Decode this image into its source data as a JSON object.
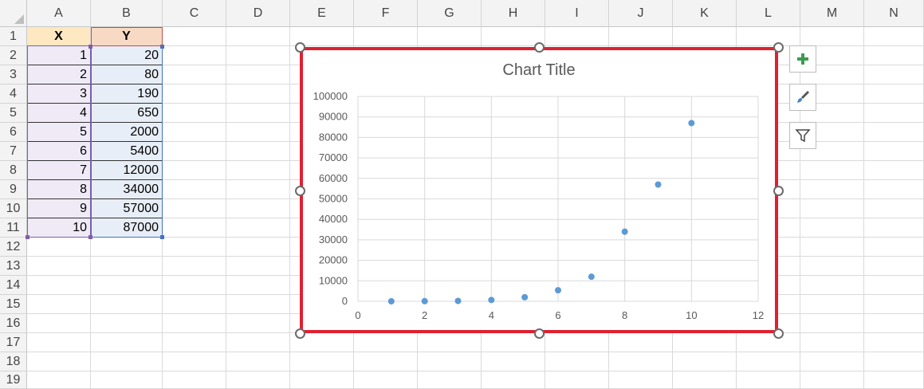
{
  "columns": [
    "A",
    "B",
    "C",
    "D",
    "E",
    "F",
    "G",
    "H",
    "I",
    "J",
    "K",
    "L",
    "M",
    "N"
  ],
  "rows": [
    "1",
    "2",
    "3",
    "4",
    "5",
    "6",
    "7",
    "8",
    "9",
    "10",
    "11",
    "12",
    "13",
    "14",
    "15",
    "16",
    "17",
    "18",
    "19"
  ],
  "table": {
    "header_x": "X",
    "header_y": "Y",
    "x_values": [
      "1",
      "2",
      "3",
      "4",
      "5",
      "6",
      "7",
      "8",
      "9",
      "10"
    ],
    "y_values": [
      "20",
      "80",
      "190",
      "650",
      "2000",
      "5400",
      "12000",
      "34000",
      "57000",
      "87000"
    ]
  },
  "chart_data": {
    "type": "scatter",
    "title": "Chart Title",
    "xlabel": "",
    "ylabel": "",
    "x": [
      1,
      2,
      3,
      4,
      5,
      6,
      7,
      8,
      9,
      10
    ],
    "y": [
      20,
      80,
      190,
      650,
      2000,
      5400,
      12000,
      34000,
      57000,
      87000
    ],
    "xlim": [
      0,
      12
    ],
    "ylim": [
      0,
      100000
    ],
    "x_ticks": [
      "0",
      "2",
      "4",
      "6",
      "8",
      "10",
      "12"
    ],
    "y_ticks": [
      "0",
      "10000",
      "20000",
      "30000",
      "40000",
      "50000",
      "60000",
      "70000",
      "80000",
      "90000",
      "100000"
    ],
    "grid": true,
    "marker_color": "#5b9bd5"
  },
  "chart_buttons": [
    {
      "name": "chart-elements-button",
      "icon": "plus-icon"
    },
    {
      "name": "chart-styles-button",
      "icon": "paintbrush-icon"
    },
    {
      "name": "chart-filters-button",
      "icon": "funnel-icon"
    }
  ],
  "colors": {
    "selection_border": "#e02030",
    "purple_range": "#7f5fa8",
    "blue_range": "#4472c4"
  }
}
